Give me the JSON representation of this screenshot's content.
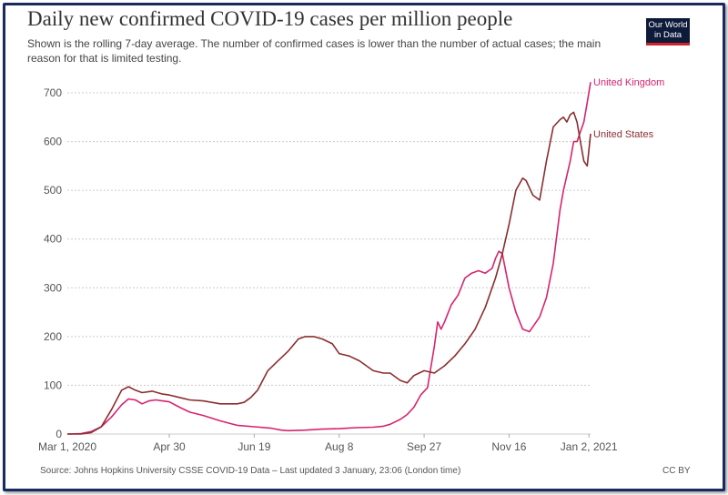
{
  "chart_data": {
    "type": "line",
    "title": "Daily new confirmed COVID-19 cases per million people",
    "subtitle": "Shown is the rolling 7-day average. The number of confirmed cases is lower than the number of actual cases; the main reason for that is limited testing.",
    "xlabel": "",
    "ylabel": "",
    "ylim": [
      0,
      700
    ],
    "xlim_days": [
      0,
      308
    ],
    "yticks": [
      "0",
      "100",
      "200",
      "300",
      "400",
      "500",
      "600",
      "700"
    ],
    "ytick_values": [
      0,
      100,
      200,
      300,
      400,
      500,
      600,
      700
    ],
    "xticks": [
      "Mar 1, 2020",
      "Apr 30",
      "Jun 19",
      "Aug 8",
      "Sep 27",
      "Nov 16",
      "Jan 2, 2021"
    ],
    "xtick_days": [
      0,
      60,
      110,
      160,
      210,
      260,
      307
    ],
    "grid": true,
    "legend": "end-of-line labels",
    "series": [
      {
        "name": "United Kingdom",
        "color": "#d6246e",
        "x_days": [
          0,
          8,
          14,
          20,
          26,
          32,
          36,
          40,
          44,
          48,
          52,
          56,
          60,
          66,
          72,
          80,
          90,
          100,
          110,
          120,
          126,
          130,
          140,
          150,
          160,
          170,
          180,
          186,
          190,
          196,
          200,
          204,
          208,
          212,
          216,
          218,
          220,
          222,
          226,
          230,
          234,
          238,
          242,
          246,
          250,
          252,
          254,
          256,
          260,
          264,
          268,
          272,
          274,
          278,
          282,
          286,
          290,
          292,
          294,
          296,
          298,
          300,
          302,
          304,
          306,
          308
        ],
        "values": [
          0,
          1,
          5,
          15,
          35,
          60,
          72,
          70,
          62,
          68,
          70,
          68,
          66,
          55,
          45,
          38,
          27,
          18,
          15,
          12,
          8,
          7,
          8,
          10,
          11,
          13,
          14,
          16,
          20,
          30,
          40,
          55,
          80,
          95,
          180,
          230,
          215,
          230,
          265,
          285,
          320,
          330,
          335,
          330,
          340,
          360,
          375,
          370,
          300,
          250,
          215,
          210,
          220,
          240,
          280,
          350,
          460,
          500,
          530,
          560,
          600,
          600,
          620,
          640,
          680,
          722
        ]
      },
      {
        "name": "United States",
        "color": "#8b2d2f",
        "x_days": [
          0,
          8,
          14,
          20,
          26,
          32,
          36,
          40,
          44,
          50,
          56,
          60,
          66,
          72,
          80,
          90,
          100,
          104,
          108,
          112,
          118,
          124,
          130,
          136,
          140,
          145,
          150,
          156,
          160,
          166,
          172,
          180,
          186,
          190,
          196,
          200,
          204,
          210,
          216,
          222,
          228,
          234,
          240,
          246,
          252,
          256,
          260,
          264,
          268,
          270,
          274,
          278,
          282,
          286,
          290,
          292,
          294,
          296,
          298,
          300,
          302,
          304,
          306,
          308
        ],
        "values": [
          0,
          0,
          3,
          15,
          50,
          90,
          97,
          90,
          85,
          88,
          82,
          80,
          75,
          70,
          68,
          62,
          62,
          65,
          75,
          90,
          130,
          150,
          170,
          195,
          200,
          200,
          195,
          185,
          165,
          160,
          150,
          130,
          125,
          125,
          110,
          105,
          120,
          130,
          125,
          140,
          160,
          185,
          215,
          260,
          320,
          370,
          430,
          500,
          525,
          520,
          490,
          480,
          560,
          630,
          645,
          650,
          640,
          655,
          660,
          640,
          600,
          560,
          550,
          616
        ]
      }
    ]
  },
  "logo": {
    "line1": "Our World",
    "line2": "in Data"
  },
  "footer": {
    "source": "Source: Johns Hopkins University CSSE COVID-19 Data – Last updated 3 January, 23:06 (London time)",
    "license": "CC BY"
  }
}
